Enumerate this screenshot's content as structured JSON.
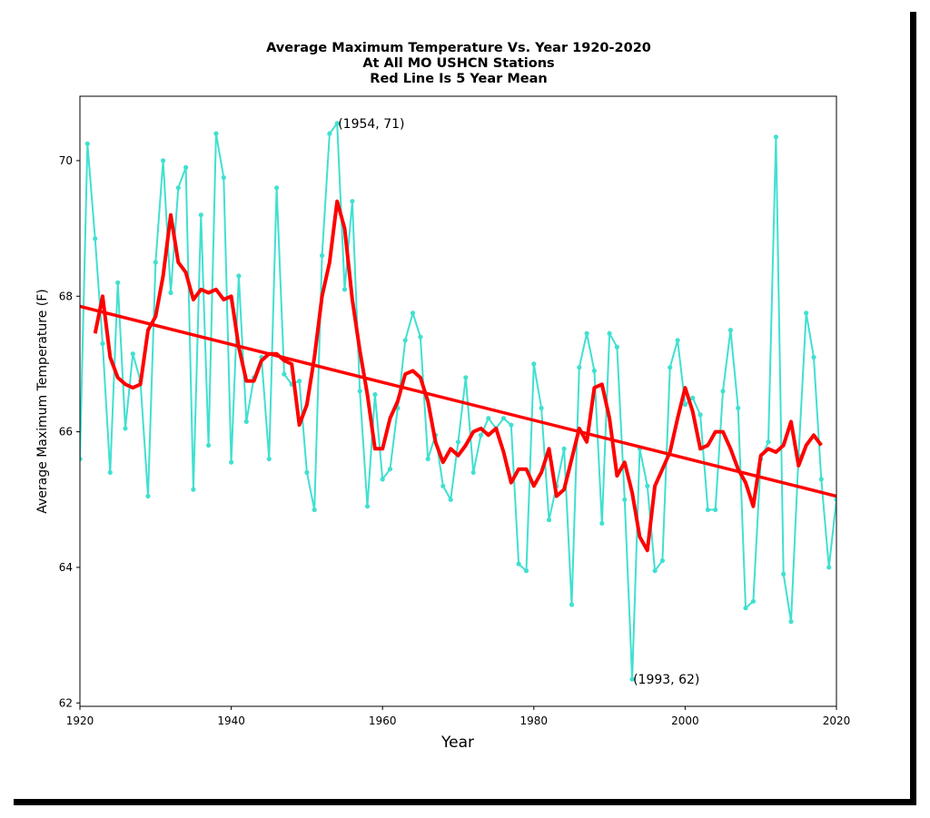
{
  "chart_data": {
    "type": "line",
    "title": [
      "Average Maximum Temperature Vs. Year 1920-2020",
      "At All MO USHCN Stations",
      "Red Line Is 5 Year Mean"
    ],
    "xlabel": "Year",
    "ylabel": "Average Maximum Temperature (F)",
    "xlim": [
      1920,
      2020
    ],
    "ylim": [
      61.95,
      70.95
    ],
    "xticks": [
      "1920",
      "1940",
      "1960",
      "1980",
      "2000",
      "2020"
    ],
    "yticks": [
      "62",
      "64",
      "66",
      "68",
      "70"
    ],
    "grid": false,
    "colors": {
      "annual": "#40e0d0",
      "mean": "#ff0000",
      "trend": "#ff0000"
    },
    "series": [
      {
        "type": "line-markers",
        "x": [
          1920,
          1921,
          1922,
          1923,
          1924,
          1925,
          1926,
          1927,
          1928,
          1929,
          1930,
          1931,
          1932,
          1933,
          1934,
          1935,
          1936,
          1937,
          1938,
          1939,
          1940,
          1941,
          1942,
          1943,
          1944,
          1945,
          1946,
          1947,
          1948,
          1949,
          1950,
          1951,
          1952,
          1953,
          1954,
          1955,
          1956,
          1957,
          1958,
          1959,
          1960,
          1961,
          1962,
          1963,
          1964,
          1965,
          1966,
          1967,
          1968,
          1969,
          1970,
          1971,
          1972,
          1973,
          1974,
          1975,
          1976,
          1977,
          1978,
          1979,
          1980,
          1981,
          1982,
          1983,
          1984,
          1985,
          1986,
          1987,
          1988,
          1989,
          1990,
          1991,
          1992,
          1993,
          1994,
          1995,
          1996,
          1997,
          1998,
          1999,
          2000,
          2001,
          2002,
          2003,
          2004,
          2005,
          2006,
          2007,
          2008,
          2009,
          2010,
          2011,
          2012,
          2013,
          2014,
          2015,
          2016,
          2017,
          2018,
          2019,
          2020
        ],
        "values": [
          65.6,
          70.25,
          68.85,
          67.3,
          65.4,
          68.2,
          66.05,
          67.15,
          66.75,
          65.05,
          68.5,
          70.0,
          68.05,
          69.6,
          69.9,
          65.15,
          69.2,
          65.8,
          70.4,
          69.75,
          65.55,
          68.3,
          66.15,
          66.8,
          67.1,
          65.6,
          69.6,
          66.85,
          66.7,
          66.75,
          65.4,
          64.85,
          68.6,
          70.4,
          70.55,
          68.1,
          69.4,
          66.6,
          64.9,
          66.55,
          65.3,
          65.45,
          66.35,
          67.35,
          67.75,
          67.4,
          65.6,
          65.95,
          65.2,
          65.0,
          65.85,
          66.8,
          65.4,
          65.95,
          66.2,
          66.05,
          66.2,
          66.1,
          64.05,
          63.95,
          67.0,
          66.35,
          64.7,
          65.2,
          65.75,
          63.45,
          66.95,
          67.45,
          66.9,
          64.65,
          67.45,
          67.25,
          65.0,
          62.35,
          65.75,
          65.2,
          63.95,
          64.1,
          66.95,
          67.35,
          66.4,
          66.5,
          66.25,
          64.85,
          64.85,
          66.6,
          67.5,
          66.35,
          63.4,
          63.5,
          65.6,
          65.85,
          70.35,
          63.9,
          63.2,
          65.65,
          67.75,
          67.1,
          65.3,
          64.0,
          65.0
        ]
      },
      {
        "type": "line",
        "x": [
          1922,
          1923,
          1924,
          1925,
          1926,
          1927,
          1928,
          1929,
          1930,
          1931,
          1932,
          1933,
          1934,
          1935,
          1936,
          1937,
          1938,
          1939,
          1940,
          1941,
          1942,
          1943,
          1944,
          1945,
          1946,
          1947,
          1948,
          1949,
          1950,
          1951,
          1952,
          1953,
          1954,
          1955,
          1956,
          1957,
          1958,
          1959,
          1960,
          1961,
          1962,
          1963,
          1964,
          1965,
          1966,
          1967,
          1968,
          1969,
          1970,
          1971,
          1972,
          1973,
          1974,
          1975,
          1976,
          1977,
          1978,
          1979,
          1980,
          1981,
          1982,
          1983,
          1984,
          1985,
          1986,
          1987,
          1988,
          1989,
          1990,
          1991,
          1992,
          1993,
          1994,
          1995,
          1996,
          1997,
          1998,
          1999,
          2000,
          2001,
          2002,
          2003,
          2004,
          2005,
          2006,
          2007,
          2008,
          2009,
          2010,
          2011,
          2012,
          2013,
          2014,
          2015,
          2016,
          2017,
          2018
        ],
        "values": [
          67.45,
          68.0,
          67.1,
          66.8,
          66.7,
          66.65,
          66.7,
          67.5,
          67.7,
          68.3,
          69.2,
          68.5,
          68.35,
          67.95,
          68.1,
          68.05,
          68.1,
          67.95,
          68.0,
          67.25,
          66.75,
          66.75,
          67.05,
          67.15,
          67.15,
          67.05,
          67.0,
          66.1,
          66.4,
          67.1,
          68.0,
          68.5,
          69.4,
          69.0,
          67.95,
          67.2,
          66.55,
          65.75,
          65.75,
          66.2,
          66.45,
          66.85,
          66.9,
          66.8,
          66.45,
          65.85,
          65.55,
          65.75,
          65.65,
          65.8,
          66.0,
          66.05,
          65.95,
          66.05,
          65.7,
          65.25,
          65.45,
          65.45,
          65.2,
          65.4,
          65.75,
          65.05,
          65.15,
          65.6,
          66.05,
          65.85,
          66.65,
          66.7,
          66.2,
          65.35,
          65.55,
          65.1,
          64.45,
          64.25,
          65.2,
          65.45,
          65.7,
          66.2,
          66.65,
          66.3,
          65.75,
          65.8,
          66.0,
          66.0,
          65.75,
          65.45,
          65.25,
          64.9,
          65.65,
          65.75,
          65.7,
          65.8,
          66.15,
          65.5,
          65.8,
          65.95,
          65.8
        ]
      },
      {
        "type": "trend",
        "x": [
          1920,
          2020
        ],
        "values": [
          67.85,
          65.05
        ]
      }
    ],
    "annotations": [
      {
        "text": "(1954, 71)",
        "x": 1954,
        "y": 70.55
      },
      {
        "text": "(1993, 62)",
        "x": 1993,
        "y": 62.35
      }
    ]
  }
}
